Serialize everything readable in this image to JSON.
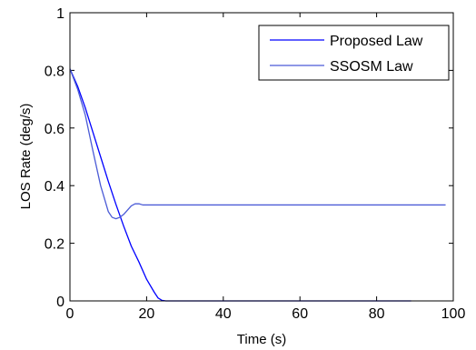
{
  "chart_data": {
    "type": "line",
    "title": "",
    "xlabel": "Time (s)",
    "ylabel": "LOS Rate (deg/s)",
    "xlim": [
      0,
      100
    ],
    "ylim": [
      0,
      1
    ],
    "grid": false,
    "legend_position": "top-right",
    "x_ticks": [
      "0",
      "20",
      "40",
      "60",
      "80",
      "100"
    ],
    "y_ticks": [
      "0",
      "0.2",
      "0.4",
      "0.6",
      "0.8",
      "1"
    ],
    "series": [
      {
        "name": "Proposed Law",
        "color": "#0000ff",
        "style": "solid",
        "x": [
          0,
          2,
          4,
          6,
          8,
          10,
          12,
          14,
          16,
          18,
          20,
          22,
          23,
          24,
          25,
          26,
          30,
          40,
          50,
          60,
          70,
          80,
          89
        ],
        "y": [
          0.805,
          0.745,
          0.67,
          0.585,
          0.5,
          0.415,
          0.335,
          0.26,
          0.19,
          0.135,
          0.075,
          0.03,
          0.01,
          0.002,
          0,
          0,
          0,
          0,
          0,
          0,
          0,
          0,
          0
        ]
      },
      {
        "name": "SSOSM Law",
        "color": "#4b5bd6",
        "style": "solid",
        "x": [
          0,
          2,
          4,
          6,
          8,
          10,
          11,
          12,
          13,
          14,
          15,
          16,
          17,
          18,
          19,
          20,
          30,
          40,
          50,
          60,
          70,
          80,
          90,
          98
        ],
        "y": [
          0.805,
          0.735,
          0.645,
          0.52,
          0.4,
          0.31,
          0.29,
          0.285,
          0.29,
          0.3,
          0.315,
          0.33,
          0.337,
          0.337,
          0.333,
          0.333,
          0.333,
          0.333,
          0.333,
          0.333,
          0.333,
          0.333,
          0.333,
          0.333
        ]
      }
    ]
  }
}
